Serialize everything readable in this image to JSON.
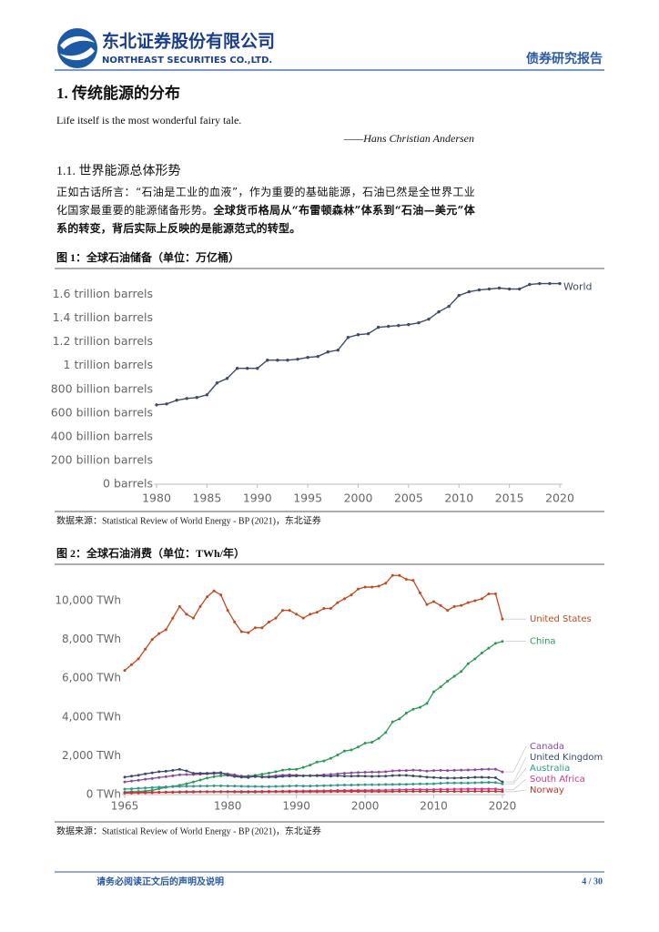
{
  "header": {
    "company_cn": "东北证券股份有限公司",
    "company_en": "NORTHEAST SECURITIES CO.,LTD.",
    "report_type": "债券研究报告"
  },
  "section_title": "1.  传统能源的分布",
  "quote": "Life itself is the most wonderful fairy tale.",
  "quote_author": "——Hans Christian Andersen",
  "subsection_title": "1.1.  世界能源总体形势",
  "paragraph": {
    "text": "正如古话所言：“石油是工业的血液”，作为重要的基础能源，石油已然是全世界工业化国家最重要的能源储备形势。",
    "bold": "全球货币格局从“布雷顿森林”体系到“石油—美元”体系的转变，背后实际上反映的是能源范式的转型。"
  },
  "footer": {
    "disclaimer": "请务必阅读正文后的声明及说明",
    "page": "4 / 30"
  },
  "chart_data": [
    {
      "type": "line",
      "title": "图 1：全球石油储备（单位：万亿桶）",
      "source": "数据来源：Statistical Review of World Energy - BP (2021)，东北证券",
      "x": [
        1980,
        1981,
        1982,
        1983,
        1984,
        1985,
        1986,
        1987,
        1988,
        1989,
        1990,
        1991,
        1992,
        1993,
        1994,
        1995,
        1996,
        1997,
        1998,
        1999,
        2000,
        2001,
        2002,
        2003,
        2004,
        2005,
        2006,
        2007,
        2008,
        2009,
        2010,
        2011,
        2012,
        2013,
        2014,
        2015,
        2016,
        2017,
        2018,
        2019,
        2020
      ],
      "series": [
        {
          "name": "World",
          "color": "#3f4c66",
          "values": [
            669000000000,
            677000000000,
            708000000000,
            723000000000,
            731000000000,
            754000000000,
            854000000000,
            892000000000,
            977000000000,
            977000000000,
            977000000000,
            1046000000000,
            1046000000000,
            1046000000000,
            1054000000000,
            1069000000000,
            1077000000000,
            1115000000000,
            1131000000000,
            1238000000000,
            1261000000000,
            1269000000000,
            1323000000000,
            1331000000000,
            1338000000000,
            1346000000000,
            1361000000000,
            1392000000000,
            1454000000000,
            1500000000000,
            1592000000000,
            1623000000000,
            1638000000000,
            1646000000000,
            1654000000000,
            1646000000000,
            1646000000000,
            1684000000000,
            1692000000000,
            1692000000000,
            1692000000000
          ]
        }
      ],
      "xlim": [
        1980,
        2020
      ],
      "xticks": [
        1980,
        1985,
        1990,
        1995,
        2000,
        2005,
        2010,
        2015,
        2020
      ],
      "ylim": [
        0,
        1750000000000
      ],
      "yticks": [
        {
          "value": 0,
          "label": "0 barrels"
        },
        {
          "value": 200000000000,
          "label": "200 billion barrels"
        },
        {
          "value": 400000000000,
          "label": "400 billion barrels"
        },
        {
          "value": 600000000000,
          "label": "600 billion barrels"
        },
        {
          "value": 800000000000,
          "label": "800 billion barrels"
        },
        {
          "value": 1000000000000,
          "label": "1 trillion barrels"
        },
        {
          "value": 1200000000000,
          "label": "1.2 trillion barrels"
        },
        {
          "value": 1400000000000,
          "label": "1.4 trillion barrels"
        },
        {
          "value": 1600000000000,
          "label": "1.6 trillion barrels"
        }
      ]
    },
    {
      "type": "line",
      "title": "图 2：全球石油消费（单位：TWh/年）",
      "source": "数据来源：Statistical Review of World Energy - BP (2021)，东北证券",
      "x": [
        1965,
        1966,
        1967,
        1968,
        1969,
        1970,
        1971,
        1972,
        1973,
        1974,
        1975,
        1976,
        1977,
        1978,
        1979,
        1980,
        1981,
        1982,
        1983,
        1984,
        1985,
        1986,
        1987,
        1988,
        1989,
        1990,
        1991,
        1992,
        1993,
        1994,
        1995,
        1996,
        1997,
        1998,
        1999,
        2000,
        2001,
        2002,
        2003,
        2004,
        2005,
        2006,
        2007,
        2008,
        2009,
        2010,
        2011,
        2012,
        2013,
        2014,
        2015,
        2016,
        2017,
        2018,
        2019,
        2020
      ],
      "series": [
        {
          "name": "United States",
          "color": "#c4481e",
          "values": [
            6400,
            6700,
            7000,
            7500,
            8000,
            8300,
            8500,
            9100,
            9700,
            9300,
            9100,
            9700,
            10200,
            10500,
            10300,
            9500,
            8900,
            8400,
            8350,
            8600,
            8600,
            8900,
            9100,
            9500,
            9500,
            9300,
            9100,
            9300,
            9400,
            9600,
            9600,
            9900,
            10100,
            10300,
            10600,
            10700,
            10700,
            10750,
            10900,
            11300,
            11300,
            11100,
            11050,
            10400,
            9800,
            9950,
            9750,
            9500,
            9700,
            9750,
            9900,
            10000,
            10100,
            10350,
            10350,
            9050
          ]
        },
        {
          "name": "China",
          "color": "#2b9a55",
          "values": [
            130,
            150,
            160,
            180,
            220,
            300,
            370,
            420,
            480,
            560,
            650,
            750,
            850,
            920,
            970,
            1000,
            960,
            950,
            960,
            990,
            1050,
            1110,
            1180,
            1260,
            1300,
            1300,
            1400,
            1520,
            1680,
            1730,
            1870,
            2040,
            2250,
            2300,
            2450,
            2650,
            2700,
            2900,
            3200,
            3750,
            3900,
            4200,
            4400,
            4500,
            4700,
            5300,
            5550,
            5850,
            6100,
            6350,
            6750,
            7000,
            7300,
            7550,
            7800,
            7900
          ]
        },
        {
          "name": "Canada",
          "color": "#8b4a9c",
          "values": [
            650,
            700,
            740,
            790,
            830,
            880,
            920,
            970,
            1020,
            1030,
            1030,
            1050,
            1070,
            1080,
            1100,
            1070,
            1020,
            950,
            920,
            920,
            920,
            930,
            970,
            1000,
            1020,
            1000,
            970,
            980,
            990,
            1020,
            1040,
            1070,
            1100,
            1120,
            1140,
            1150,
            1160,
            1160,
            1180,
            1220,
            1240,
            1240,
            1260,
            1250,
            1210,
            1240,
            1250,
            1240,
            1250,
            1260,
            1270,
            1280,
            1300,
            1310,
            1310,
            1170
          ]
        },
        {
          "name": "United Kingdom",
          "color": "#3b4a6b",
          "values": [
            900,
            950,
            1000,
            1070,
            1120,
            1180,
            1200,
            1250,
            1300,
            1220,
            1100,
            1100,
            1100,
            1120,
            1130,
            1000,
            930,
            900,
            880,
            950,
            900,
            900,
            900,
            940,
            950,
            960,
            970,
            970,
            970,
            960,
            950,
            970,
            950,
            950,
            960,
            950,
            940,
            950,
            950,
            980,
            990,
            990,
            960,
            940,
            900,
            880,
            860,
            850,
            850,
            860,
            870,
            890,
            890,
            880,
            870,
            650
          ]
        },
        {
          "name": "Australia",
          "color": "#2e9a8a",
          "values": [
            280,
            300,
            320,
            340,
            360,
            380,
            400,
            410,
            420,
            430,
            430,
            440,
            440,
            450,
            450,
            440,
            440,
            430,
            420,
            420,
            410,
            410,
            420,
            430,
            440,
            450,
            440,
            440,
            450,
            460,
            470,
            480,
            490,
            490,
            500,
            510,
            510,
            510,
            520,
            520,
            530,
            530,
            540,
            550,
            550,
            560,
            580,
            600,
            600,
            600,
            600,
            610,
            620,
            630,
            620,
            550
          ]
        },
        {
          "name": "South Africa",
          "color": "#d1358a",
          "values": [
            100,
            105,
            110,
            115,
            120,
            125,
            130,
            135,
            140,
            150,
            150,
            150,
            150,
            150,
            155,
            155,
            160,
            160,
            160,
            165,
            165,
            170,
            170,
            175,
            180,
            180,
            185,
            190,
            195,
            200,
            205,
            210,
            215,
            215,
            220,
            220,
            225,
            225,
            230,
            240,
            245,
            250,
            260,
            260,
            250,
            260,
            270,
            270,
            280,
            280,
            290,
            290,
            290,
            290,
            290,
            250
          ]
        },
        {
          "name": "Norway",
          "color": "#c0392b",
          "values": [
            80,
            85,
            90,
            95,
            100,
            110,
            115,
            120,
            125,
            130,
            130,
            140,
            140,
            140,
            140,
            140,
            135,
            130,
            130,
            130,
            135,
            140,
            140,
            140,
            140,
            140,
            140,
            140,
            140,
            140,
            145,
            150,
            150,
            155,
            155,
            150,
            150,
            150,
            150,
            155,
            160,
            160,
            160,
            160,
            160,
            160,
            160,
            160,
            160,
            160,
            165,
            165,
            165,
            165,
            165,
            150
          ]
        }
      ],
      "xlim": [
        1965,
        2020
      ],
      "xticks": [
        1965,
        1980,
        1990,
        2000,
        2010,
        2020
      ],
      "ylim": [
        0,
        11500
      ],
      "yticks": [
        {
          "value": 0,
          "label": "0 TWh"
        },
        {
          "value": 2000,
          "label": "2,000 TWh"
        },
        {
          "value": 4000,
          "label": "4,000 TWh"
        },
        {
          "value": 6000,
          "label": "6,000 TWh"
        },
        {
          "value": 8000,
          "label": "8,000 TWh"
        },
        {
          "value": 10000,
          "label": "10,000 TWh"
        }
      ]
    }
  ]
}
